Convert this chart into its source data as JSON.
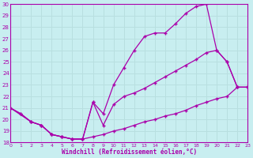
{
  "xlabel": "Windchill (Refroidissement éolien,°C)",
  "bg_color": "#c8eef0",
  "line_color": "#aa00aa",
  "grid_color": "#b8dfe0",
  "xlim": [
    0,
    23
  ],
  "ylim": [
    18,
    30
  ],
  "xticks": [
    0,
    1,
    2,
    3,
    4,
    5,
    6,
    7,
    8,
    9,
    10,
    11,
    12,
    13,
    14,
    15,
    16,
    17,
    18,
    19,
    20,
    21,
    22,
    23
  ],
  "yticks": [
    18,
    19,
    20,
    21,
    22,
    23,
    24,
    25,
    26,
    27,
    28,
    29,
    30
  ],
  "curve_a_x": [
    0,
    1,
    2,
    3,
    4,
    5,
    6,
    7,
    8,
    9,
    10,
    11,
    12,
    13,
    14,
    15,
    16,
    17,
    18,
    19,
    20,
    21,
    22,
    23
  ],
  "curve_a_y": [
    21.0,
    20.5,
    19.8,
    19.5,
    18.7,
    18.5,
    18.3,
    18.3,
    18.5,
    18.7,
    19.0,
    19.2,
    19.5,
    19.8,
    20.0,
    20.3,
    20.5,
    20.8,
    21.2,
    21.5,
    21.8,
    22.0,
    22.8,
    22.8
  ],
  "curve_b_x": [
    0,
    1,
    2,
    3,
    4,
    5,
    6,
    7,
    8,
    9,
    10,
    11,
    12,
    13,
    14,
    15,
    16,
    17,
    18,
    19,
    20,
    21,
    22,
    23
  ],
  "curve_b_y": [
    21.0,
    20.5,
    19.8,
    19.5,
    18.7,
    18.5,
    18.3,
    18.3,
    21.5,
    20.5,
    23.0,
    24.5,
    26.0,
    27.2,
    27.5,
    27.5,
    28.3,
    29.2,
    29.8,
    30.0,
    26.0,
    25.0,
    22.8,
    22.8
  ],
  "curve_c_x": [
    0,
    2,
    3,
    4,
    5,
    6,
    7,
    8,
    9,
    10,
    11,
    12,
    13,
    14,
    15,
    16,
    17,
    18,
    19,
    20,
    21,
    22,
    23
  ],
  "curve_c_y": [
    21.0,
    19.8,
    19.5,
    18.7,
    18.5,
    18.3,
    18.3,
    21.5,
    19.5,
    21.3,
    22.0,
    22.3,
    22.7,
    23.2,
    23.7,
    24.2,
    24.7,
    25.2,
    25.8,
    26.0,
    25.0,
    22.8,
    22.8
  ]
}
